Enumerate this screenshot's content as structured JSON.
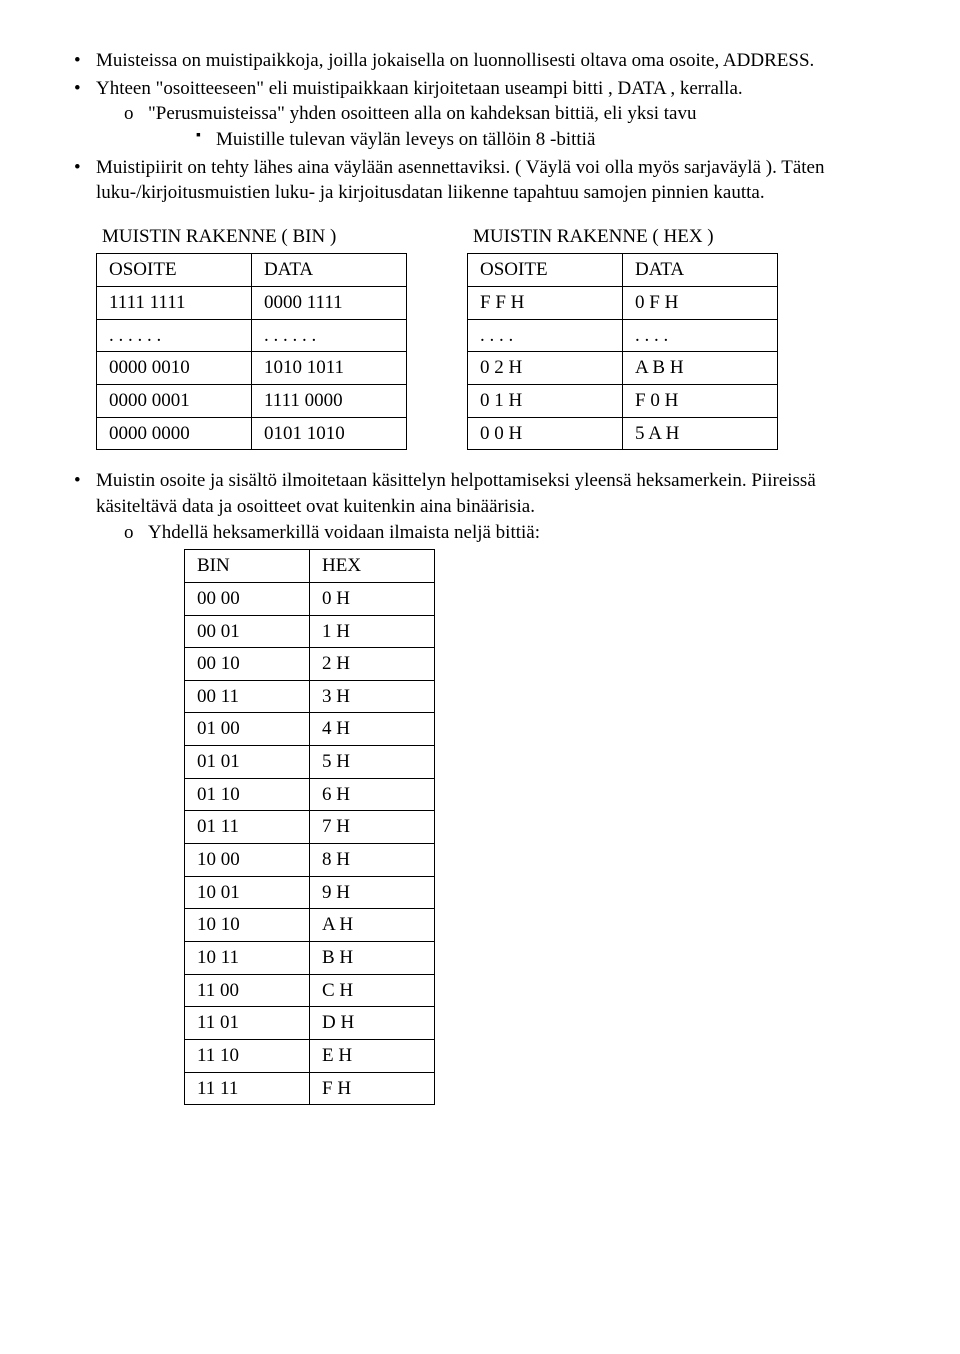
{
  "bullets": {
    "b1": "Muisteissa on muistipaikkoja, joilla jokaisella on luonnollisesti oltava oma osoite, ADDRESS.",
    "b2": "Yhteen \"osoitteeseen\" eli muistipaikkaan kirjoitetaan useampi bitti , DATA , kerralla.",
    "b2_sub": "\"Perusmuisteissa\" yhden osoitteen alla on kahdeksan bittiä, eli yksi tavu",
    "b2_sub_sub": "Muistille tulevan väylän leveys on tällöin 8 -bittiä",
    "b3": "Muistipiirit on tehty lähes aina väylään asennettaviksi. ( Väylä voi olla myös sarjaväylä ). Täten luku-/kirjoitusmuistien luku- ja kirjoitusdatan liikenne tapahtuu samojen pinnien kautta."
  },
  "table_bin": {
    "title": "MUISTIN RAKENNE ( BIN )",
    "header": [
      "OSOITE",
      "DATA"
    ],
    "rows": [
      [
        "1111 1111",
        "0000 1111"
      ],
      [
        ". . . . . .",
        ". . . . . ."
      ],
      [
        "0000 0010",
        "1010 1011"
      ],
      [
        "0000 0001",
        "1111 0000"
      ],
      [
        "0000 0000",
        "0101 1010"
      ]
    ]
  },
  "table_hex": {
    "title": "MUISTIN RAKENNE ( HEX )",
    "header": [
      "OSOITE",
      "DATA"
    ],
    "rows": [
      [
        "F  F  H",
        "0  F   H"
      ],
      [
        ". . . .",
        ". . . ."
      ],
      [
        "0  2  H",
        "A B   H"
      ],
      [
        "0  1  H",
        "F  0   H"
      ],
      [
        "0  0  H",
        "5  A   H"
      ]
    ]
  },
  "lower": {
    "b1": "Muistin osoite ja sisältö ilmoitetaan käsittelyn helpottamiseksi yleensä heksamerkein. Piireissä käsiteltävä data ja osoitteet ovat kuitenkin aina binäärisia.",
    "b1_sub": "Yhdellä heksamerkillä voidaan ilmaista neljä bittiä:"
  },
  "hexmap": {
    "header": [
      "BIN",
      "HEX"
    ],
    "rows": [
      [
        "00 00",
        "0  H"
      ],
      [
        "00 01",
        "1  H"
      ],
      [
        "00 10",
        "2  H"
      ],
      [
        "00 11",
        "3  H"
      ],
      [
        "01 00",
        "4  H"
      ],
      [
        "01 01",
        "5  H"
      ],
      [
        "01 10",
        "6  H"
      ],
      [
        "01 11",
        "7  H"
      ],
      [
        "10 00",
        "8  H"
      ],
      [
        "10 01",
        "9  H"
      ],
      [
        "10 10",
        "A  H"
      ],
      [
        "10 11",
        "B  H"
      ],
      [
        "11 00",
        "C  H"
      ],
      [
        "11 01",
        "D  H"
      ],
      [
        "11 10",
        "E  H"
      ],
      [
        "11 11",
        "F  H"
      ]
    ]
  }
}
